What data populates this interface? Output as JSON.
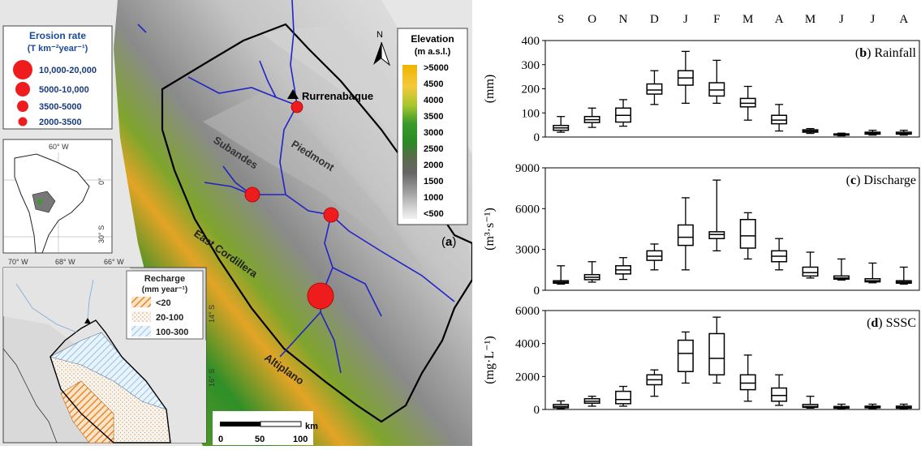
{
  "map": {
    "panel_label": "(a)",
    "north_label": "N",
    "erosion_legend": {
      "title_line1": "Erosion rate",
      "title_line2": "(T km⁻²year⁻¹)",
      "items": [
        "10,000-20,000",
        "5000-10,000",
        "3500-5000",
        "2000-3500"
      ]
    },
    "elevation_legend": {
      "title_line1": "Elevation",
      "title_line2": "(m a.s.l.)",
      "labels": [
        ">5000",
        "4500",
        "4000",
        "3500",
        "3000",
        "2500",
        "2000",
        "1500",
        "1000",
        "<500"
      ]
    },
    "places": {
      "rurrenabaque": "Rurrenabaque",
      "subandes": "Subandes",
      "piedmont": "Piedmont",
      "east_cordillera": "East Cordillera",
      "altiplano": "Altiplano"
    },
    "inset_coords": {
      "lon1": "60° W",
      "lat0": "0°",
      "lat30": "30° S"
    },
    "recharge": {
      "lon_labels": [
        "70° W",
        "68° W",
        "66° W"
      ],
      "lat_labels": [
        "14° S",
        "16° S"
      ],
      "title_line1": "Recharge",
      "title_line2": "(mm year⁻¹)",
      "items": [
        "<20",
        "20-100",
        "100-300"
      ]
    },
    "scalebar": {
      "unit": "km",
      "ticks": [
        "0",
        "50",
        "100"
      ]
    },
    "colors": {
      "water": "#2323c8",
      "site": "#ee1c1c",
      "lowland": "#e6e6e6"
    }
  },
  "chart_data": [
    {
      "type": "box",
      "panel_letter": "b",
      "panel_name": "Rainfall",
      "ylabel": "(mm)",
      "ylim": [
        0,
        400
      ],
      "yticks": [
        0,
        100,
        200,
        300,
        400
      ],
      "categories": [
        "S",
        "O",
        "N",
        "D",
        "J",
        "F",
        "M",
        "A",
        "M",
        "J",
        "J",
        "A"
      ],
      "boxes": [
        {
          "min": 20,
          "q1": 28,
          "median": 38,
          "q3": 48,
          "max": 85
        },
        {
          "min": 40,
          "q1": 60,
          "median": 72,
          "q3": 85,
          "max": 120
        },
        {
          "min": 45,
          "q1": 62,
          "median": 90,
          "q3": 120,
          "max": 155
        },
        {
          "min": 135,
          "q1": 178,
          "median": 195,
          "q3": 220,
          "max": 275
        },
        {
          "min": 140,
          "q1": 215,
          "median": 245,
          "q3": 275,
          "max": 355
        },
        {
          "min": 140,
          "q1": 170,
          "median": 195,
          "q3": 225,
          "max": 318
        },
        {
          "min": 70,
          "q1": 125,
          "median": 140,
          "q3": 160,
          "max": 210
        },
        {
          "min": 25,
          "q1": 55,
          "median": 70,
          "q3": 90,
          "max": 135
        },
        {
          "min": 15,
          "q1": 20,
          "median": 25,
          "q3": 30,
          "max": 35
        },
        {
          "min": 5,
          "q1": 8,
          "median": 10,
          "q3": 13,
          "max": 16
        },
        {
          "min": 8,
          "q1": 12,
          "median": 16,
          "q3": 20,
          "max": 28
        },
        {
          "min": 8,
          "q1": 12,
          "median": 15,
          "q3": 20,
          "max": 28
        }
      ]
    },
    {
      "type": "box",
      "panel_letter": "c",
      "panel_name": "Discharge",
      "ylabel": "(m³·s⁻¹)",
      "ylim": [
        0,
        9000
      ],
      "yticks": [
        0,
        3000,
        6000,
        9000
      ],
      "categories": [
        "S",
        "O",
        "N",
        "D",
        "J",
        "F",
        "M",
        "A",
        "M",
        "J",
        "J",
        "A"
      ],
      "boxes": [
        {
          "min": 450,
          "q1": 520,
          "median": 600,
          "q3": 700,
          "max": 1800
        },
        {
          "min": 600,
          "q1": 780,
          "median": 950,
          "q3": 1150,
          "max": 2100
        },
        {
          "min": 800,
          "q1": 1200,
          "median": 1500,
          "q3": 1800,
          "max": 2400
        },
        {
          "min": 1500,
          "q1": 2200,
          "median": 2500,
          "q3": 2900,
          "max": 3400
        },
        {
          "min": 1500,
          "q1": 3300,
          "median": 3900,
          "q3": 4800,
          "max": 6800
        },
        {
          "min": 2900,
          "q1": 3800,
          "median": 4100,
          "q3": 4300,
          "max": 8100
        },
        {
          "min": 2300,
          "q1": 3100,
          "median": 4000,
          "q3": 5200,
          "max": 5700
        },
        {
          "min": 1500,
          "q1": 2100,
          "median": 2500,
          "q3": 2900,
          "max": 3800
        },
        {
          "min": 900,
          "q1": 1050,
          "median": 1300,
          "q3": 1700,
          "max": 2800
        },
        {
          "min": 750,
          "q1": 820,
          "median": 900,
          "q3": 1050,
          "max": 2300
        },
        {
          "min": 550,
          "q1": 620,
          "median": 700,
          "q3": 850,
          "max": 2000
        },
        {
          "min": 450,
          "q1": 520,
          "median": 600,
          "q3": 700,
          "max": 1700
        }
      ]
    },
    {
      "type": "box",
      "panel_letter": "d",
      "panel_name": "SSSC",
      "ylabel": "(mg·L⁻¹)",
      "ylim": [
        0,
        6000
      ],
      "yticks": [
        0,
        2000,
        4000,
        6000
      ],
      "categories": [
        "S",
        "O",
        "N",
        "D",
        "J",
        "F",
        "M",
        "A",
        "M",
        "J",
        "J",
        "A"
      ],
      "boxes": [
        {
          "min": 60,
          "q1": 100,
          "median": 180,
          "q3": 300,
          "max": 520
        },
        {
          "min": 200,
          "q1": 380,
          "median": 500,
          "q3": 650,
          "max": 800
        },
        {
          "min": 200,
          "q1": 350,
          "median": 600,
          "q3": 1100,
          "max": 1400
        },
        {
          "min": 800,
          "q1": 1500,
          "median": 1800,
          "q3": 2100,
          "max": 2400
        },
        {
          "min": 1600,
          "q1": 2300,
          "median": 3400,
          "q3": 4200,
          "max": 4700
        },
        {
          "min": 1600,
          "q1": 2100,
          "median": 3100,
          "q3": 4600,
          "max": 5600
        },
        {
          "min": 500,
          "q1": 1200,
          "median": 1600,
          "q3": 2100,
          "max": 3300
        },
        {
          "min": 250,
          "q1": 500,
          "median": 850,
          "q3": 1300,
          "max": 2100
        },
        {
          "min": 80,
          "q1": 130,
          "median": 180,
          "q3": 300,
          "max": 800
        },
        {
          "min": 40,
          "q1": 80,
          "median": 120,
          "q3": 180,
          "max": 320
        },
        {
          "min": 60,
          "q1": 100,
          "median": 140,
          "q3": 200,
          "max": 320
        },
        {
          "min": 40,
          "q1": 80,
          "median": 130,
          "q3": 200,
          "max": 320
        }
      ]
    }
  ]
}
